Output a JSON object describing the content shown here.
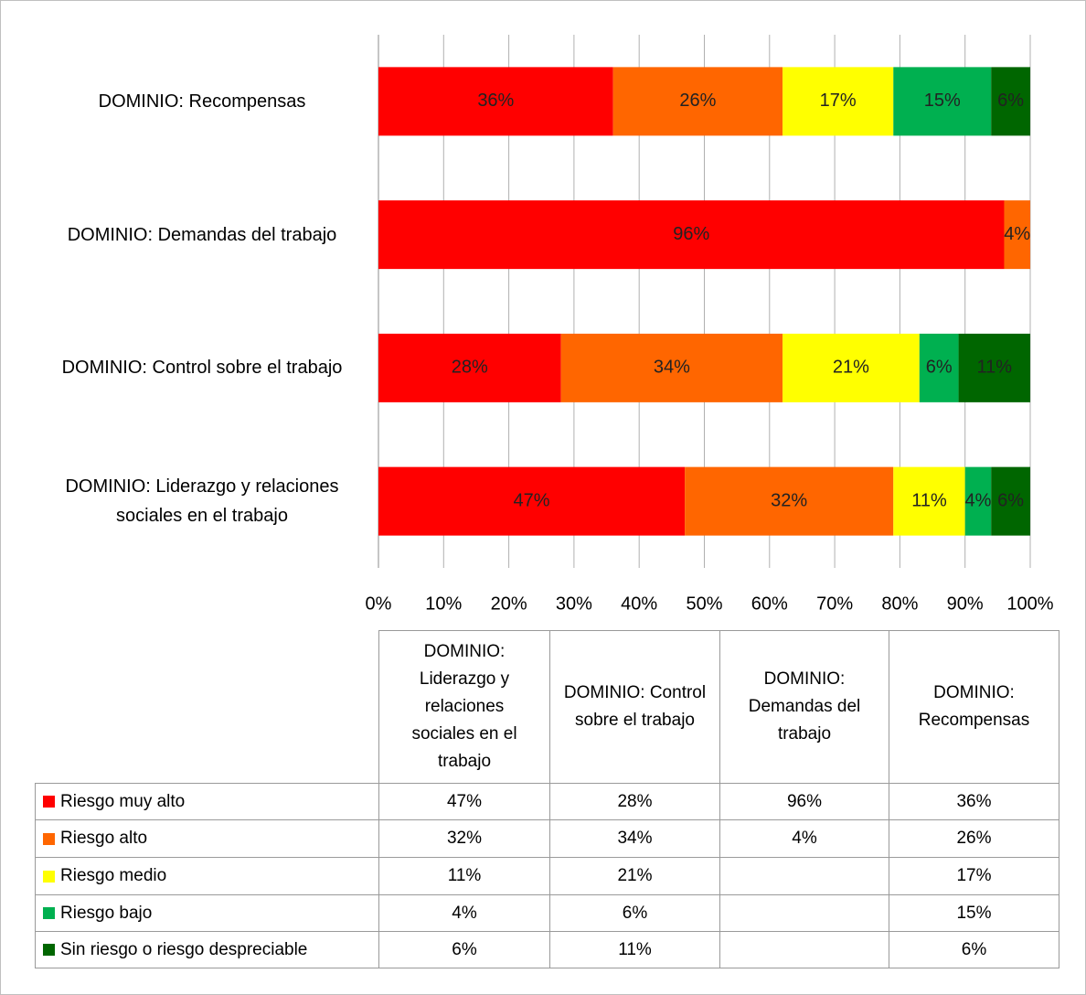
{
  "chart_data": {
    "type": "stacked_bar_horizontal",
    "categories": [
      "DOMINIO: Liderazgo y relaciones sociales en el trabajo",
      "DOMINIO: Control sobre el trabajo",
      "DOMINIO: Demandas del trabajo",
      "DOMINIO: Recompensas"
    ],
    "series": [
      {
        "name": "Riesgo muy alto",
        "color": "#ff0000",
        "values": [
          47,
          28,
          96,
          36
        ],
        "value_labels": [
          "47%",
          "28%",
          "96%",
          "36%"
        ]
      },
      {
        "name": "Riesgo alto",
        "color": "#ff6600",
        "values": [
          32,
          34,
          4,
          26
        ],
        "value_labels": [
          "32%",
          "34%",
          "4%",
          "26%"
        ]
      },
      {
        "name": "Riesgo medio",
        "color": "#ffff00",
        "values": [
          11,
          21,
          null,
          17
        ],
        "value_labels": [
          "11%",
          "21%",
          null,
          "17%"
        ]
      },
      {
        "name": "Riesgo bajo",
        "color": "#00b050",
        "values": [
          4,
          6,
          null,
          15
        ],
        "value_labels": [
          "4%",
          "6%",
          null,
          "15%"
        ]
      },
      {
        "name": "Sin riesgo o riesgo despreciable",
        "color": "#006600",
        "values": [
          6,
          11,
          null,
          6
        ],
        "value_labels": [
          "6%",
          "11%",
          null,
          "6%"
        ]
      }
    ],
    "xlim": [
      0,
      100
    ],
    "xticks": [
      {
        "value": 0,
        "label": "0%"
      },
      {
        "value": 10,
        "label": "10%"
      },
      {
        "value": 20,
        "label": "20%"
      },
      {
        "value": 30,
        "label": "30%"
      },
      {
        "value": 40,
        "label": "40%"
      },
      {
        "value": 50,
        "label": "50%"
      },
      {
        "value": 60,
        "label": "60%"
      },
      {
        "value": 70,
        "label": "70%"
      },
      {
        "value": 80,
        "label": "80%"
      },
      {
        "value": 90,
        "label": "90%"
      },
      {
        "value": 100,
        "label": "100%"
      }
    ],
    "grid": true,
    "data_table": true
  }
}
